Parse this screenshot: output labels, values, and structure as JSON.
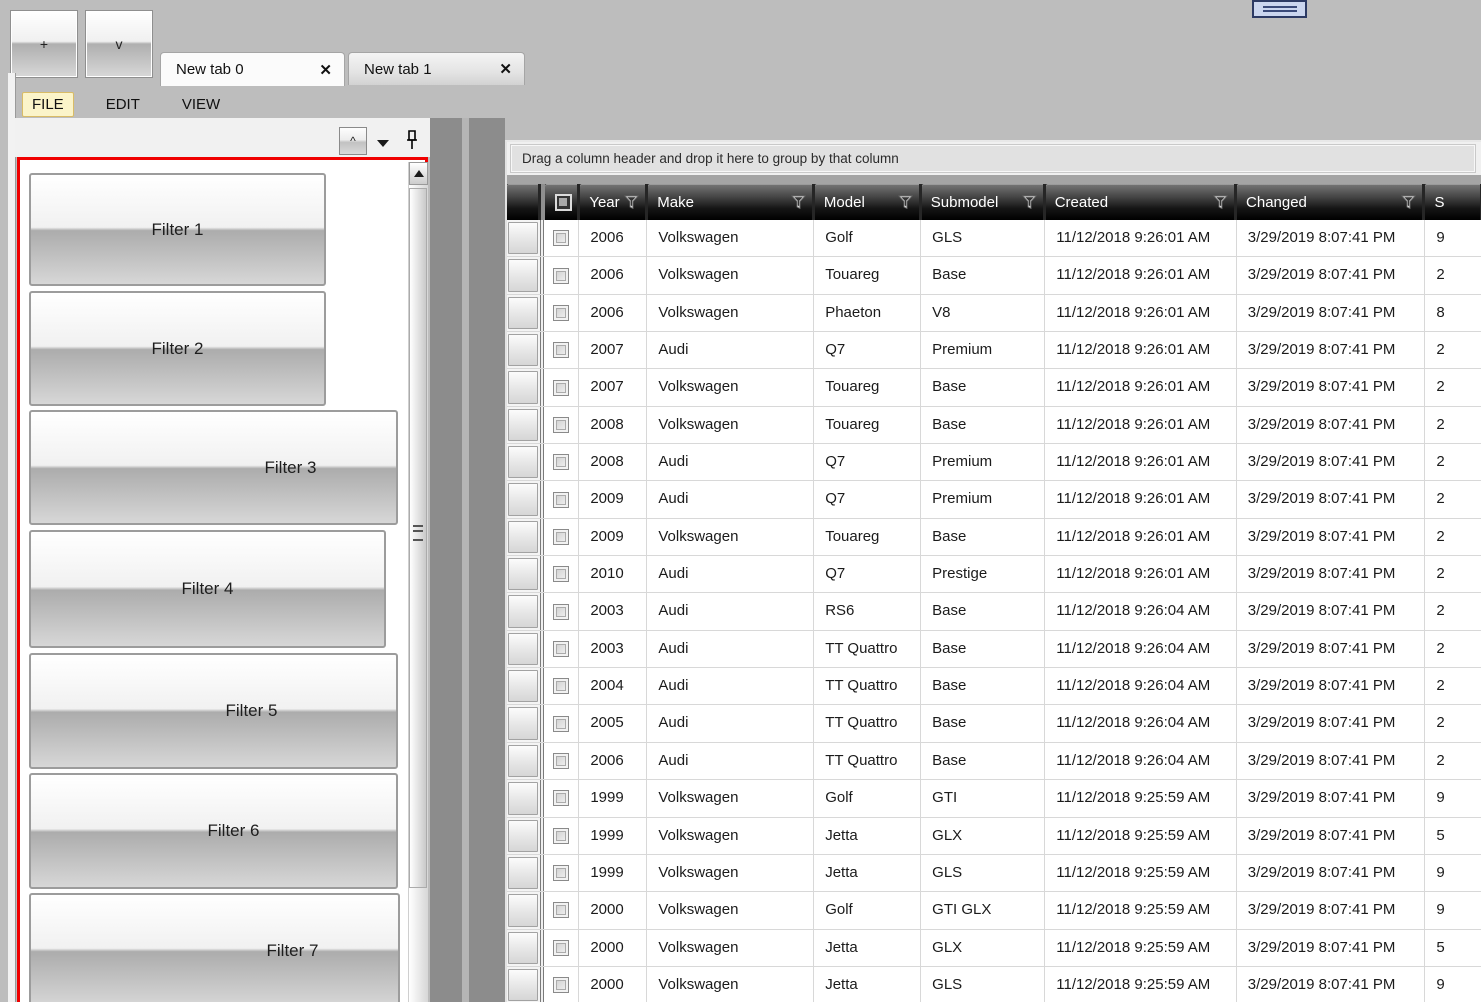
{
  "window": {
    "toolbar_buttons": [
      {
        "label": "+"
      },
      {
        "label": "v"
      }
    ],
    "tabs": [
      {
        "label": "New tab 0",
        "close_glyph": "✕",
        "active": true
      },
      {
        "label": "New tab 1",
        "close_glyph": "✕",
        "active": false
      }
    ],
    "menu_items": [
      {
        "label": "FILE",
        "highlighted": true
      },
      {
        "label": "EDIT",
        "highlighted": false
      },
      {
        "label": "VIEW",
        "highlighted": false
      }
    ]
  },
  "left_toolbar": {
    "collapse_label": "^"
  },
  "filter_panel": {
    "border_color": "#F00000",
    "buttons": [
      {
        "label": "Filter 1"
      },
      {
        "label": "Filter 2"
      },
      {
        "label": "Filter 3"
      },
      {
        "label": "Filter 4"
      },
      {
        "label": "Filter 5"
      },
      {
        "label": "Filter 6"
      },
      {
        "label": "Filter 7"
      }
    ]
  },
  "grid": {
    "group_panel_text": "Drag a column header and drop it here to group by that column",
    "columns": [
      {
        "label": "Year",
        "field": "year",
        "filter_icon": true
      },
      {
        "label": "Make",
        "field": "make",
        "filter_icon": true
      },
      {
        "label": "Model",
        "field": "model",
        "filter_icon": true
      },
      {
        "label": "Submodel",
        "field": "sub",
        "filter_icon": true
      },
      {
        "label": "Created",
        "field": "cre",
        "filter_icon": true
      },
      {
        "label": "Changed",
        "field": "chg",
        "filter_icon": true
      }
    ],
    "clipped_column": {
      "label_partial": "S"
    },
    "rows": [
      [
        "2006",
        "Volkswagen",
        "Golf",
        "GLS",
        "11/12/2018 9:26:01 AM",
        "3/29/2019 8:07:41 PM",
        "9"
      ],
      [
        "2006",
        "Volkswagen",
        "Touareg",
        "Base",
        "11/12/2018 9:26:01 AM",
        "3/29/2019 8:07:41 PM",
        "2"
      ],
      [
        "2006",
        "Volkswagen",
        "Phaeton",
        "V8",
        "11/12/2018 9:26:01 AM",
        "3/29/2019 8:07:41 PM",
        "8"
      ],
      [
        "2007",
        "Audi",
        "Q7",
        "Premium",
        "11/12/2018 9:26:01 AM",
        "3/29/2019 8:07:41 PM",
        "2"
      ],
      [
        "2007",
        "Volkswagen",
        "Touareg",
        "Base",
        "11/12/2018 9:26:01 AM",
        "3/29/2019 8:07:41 PM",
        "2"
      ],
      [
        "2008",
        "Volkswagen",
        "Touareg",
        "Base",
        "11/12/2018 9:26:01 AM",
        "3/29/2019 8:07:41 PM",
        "2"
      ],
      [
        "2008",
        "Audi",
        "Q7",
        "Premium",
        "11/12/2018 9:26:01 AM",
        "3/29/2019 8:07:41 PM",
        "2"
      ],
      [
        "2009",
        "Audi",
        "Q7",
        "Premium",
        "11/12/2018 9:26:01 AM",
        "3/29/2019 8:07:41 PM",
        "2"
      ],
      [
        "2009",
        "Volkswagen",
        "Touareg",
        "Base",
        "11/12/2018 9:26:01 AM",
        "3/29/2019 8:07:41 PM",
        "2"
      ],
      [
        "2010",
        "Audi",
        "Q7",
        "Prestige",
        "11/12/2018 9:26:01 AM",
        "3/29/2019 8:07:41 PM",
        "2"
      ],
      [
        "2003",
        "Audi",
        "RS6",
        "Base",
        "11/12/2018 9:26:04 AM",
        "3/29/2019 8:07:41 PM",
        "2"
      ],
      [
        "2003",
        "Audi",
        "TT Quattro",
        "Base",
        "11/12/2018 9:26:04 AM",
        "3/29/2019 8:07:41 PM",
        "2"
      ],
      [
        "2004",
        "Audi",
        "TT Quattro",
        "Base",
        "11/12/2018 9:26:04 AM",
        "3/29/2019 8:07:41 PM",
        "2"
      ],
      [
        "2005",
        "Audi",
        "TT Quattro",
        "Base",
        "11/12/2018 9:26:04 AM",
        "3/29/2019 8:07:41 PM",
        "2"
      ],
      [
        "2006",
        "Audi",
        "TT Quattro",
        "Base",
        "11/12/2018 9:26:04 AM",
        "3/29/2019 8:07:41 PM",
        "2"
      ],
      [
        "1999",
        "Volkswagen",
        "Golf",
        "GTI",
        "11/12/2018 9:25:59 AM",
        "3/29/2019 8:07:41 PM",
        "9"
      ],
      [
        "1999",
        "Volkswagen",
        "Jetta",
        "GLX",
        "11/12/2018 9:25:59 AM",
        "3/29/2019 8:07:41 PM",
        "5"
      ],
      [
        "1999",
        "Volkswagen",
        "Jetta",
        "GLS",
        "11/12/2018 9:25:59 AM",
        "3/29/2019 8:07:41 PM",
        "9"
      ],
      [
        "2000",
        "Volkswagen",
        "Golf",
        "GTI GLX",
        "11/12/2018 9:25:59 AM",
        "3/29/2019 8:07:41 PM",
        "9"
      ],
      [
        "2000",
        "Volkswagen",
        "Jetta",
        "GLX",
        "11/12/2018 9:25:59 AM",
        "3/29/2019 8:07:41 PM",
        "5"
      ],
      [
        "2000",
        "Volkswagen",
        "Jetta",
        "GLS",
        "11/12/2018 9:25:59 AM",
        "3/29/2019 8:07:41 PM",
        "9"
      ]
    ]
  },
  "icons": {
    "collapse_widget": "ribbon-collapse-icon",
    "dropdown": "chevron-down-icon",
    "pin": "pin-icon",
    "scroll_up": "arrow-up-icon",
    "column_filter": "filter-funnel-icon",
    "tab_close": "close-icon"
  },
  "colors": {
    "window_background": "#BDBDBD",
    "panel_highlight_border": "#F00000",
    "menu_highlight": "#FBF4C9",
    "grid_header": "#1A1A1A",
    "splitter": "#8C8C8C",
    "collapse_widget_fill": "#CBD6EF",
    "collapse_widget_border": "#2C3A64"
  }
}
